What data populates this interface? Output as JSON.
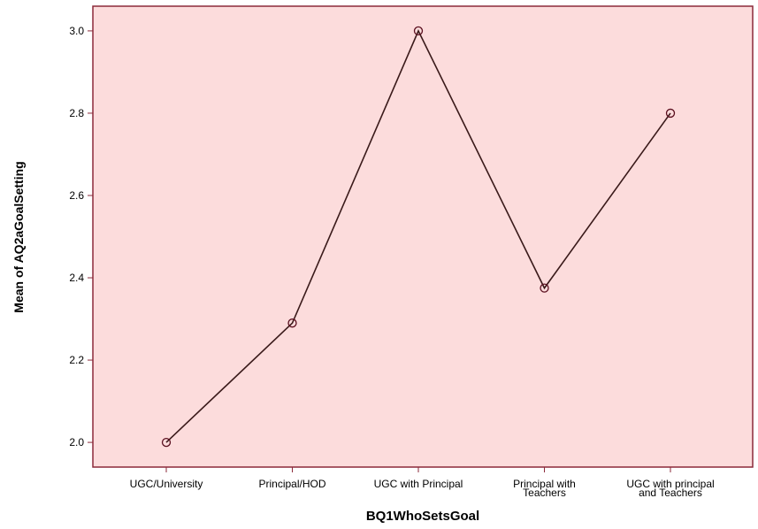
{
  "chart_data": {
    "type": "line",
    "xlabel": "BQ1WhoSetsGoal",
    "ylabel": "Mean of AQ2aGoalSetting",
    "categories": [
      [
        "UGC/University"
      ],
      [
        "Principal/HOD"
      ],
      [
        "UGC with Principal"
      ],
      [
        "Principal with",
        "Teachers"
      ],
      [
        "UGC with principal",
        "and Teachers"
      ]
    ],
    "values": [
      2.0,
      2.29,
      3.0,
      2.375,
      2.8
    ],
    "ylim": [
      1.94,
      3.06
    ],
    "yticks": [
      "2.0",
      "2.2",
      "2.4",
      "2.6",
      "2.8",
      "3.0"
    ],
    "grid": false,
    "colors": {
      "plot_background": "#fcdcdc",
      "frame": "#8b2a3a",
      "line": "#3a1a1a",
      "marker": "#5a0f1f"
    }
  }
}
